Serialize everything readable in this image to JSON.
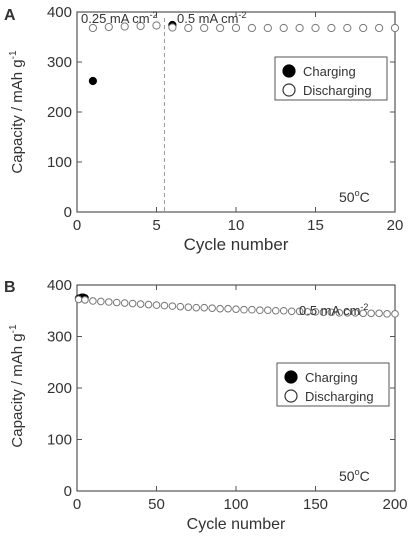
{
  "chart_data": [
    {
      "panel": "A",
      "type": "scatter",
      "xlabel": "Cycle number",
      "ylabel": "Capacity / mAh g",
      "ylabel_sup": "-1",
      "xlim": [
        0,
        20
      ],
      "ylim": [
        0,
        400
      ],
      "xticks": [
        0,
        5,
        10,
        15,
        20
      ],
      "yticks": [
        0,
        100,
        200,
        300,
        400
      ],
      "annotations": {
        "rate_left": "0.25 mA cm",
        "rate_left_sup": "-2",
        "rate_right": "0.5 mA cm",
        "rate_right_sup": "-2",
        "temp": "50",
        "temp_sup": "o",
        "temp_unit": "C"
      },
      "divider_x": 5.5,
      "legend": {
        "position": "top-right",
        "entries": [
          "Charging",
          "Discharging"
        ]
      },
      "series": [
        {
          "name": "Charging",
          "marker": "filled",
          "x": [
            1,
            6
          ],
          "y": [
            262,
            374
          ]
        },
        {
          "name": "Discharging",
          "marker": "open",
          "x": [
            1,
            2,
            3,
            4,
            5,
            6,
            7,
            8,
            9,
            10,
            11,
            12,
            13,
            14,
            15,
            16,
            17,
            18,
            19,
            20
          ],
          "y": [
            368,
            370,
            371,
            372,
            373,
            369,
            368,
            368,
            368,
            368,
            368,
            368,
            368,
            368,
            368,
            368,
            368,
            368,
            368,
            368
          ]
        }
      ]
    },
    {
      "panel": "B",
      "type": "scatter",
      "xlabel": "Cycle number",
      "ylabel": "Capacity / mAh g",
      "ylabel_sup": "-1",
      "xlim": [
        0,
        200
      ],
      "ylim": [
        0,
        400
      ],
      "xticks": [
        0,
        50,
        100,
        150,
        200
      ],
      "yticks": [
        0,
        100,
        200,
        300,
        400
      ],
      "annotations": {
        "rate": "0.5 mA cm",
        "rate_sup": "-2",
        "temp": "50",
        "temp_sup": "o",
        "temp_unit": "C"
      },
      "legend": {
        "position": "top-right",
        "entries": [
          "Charging",
          "Discharging"
        ]
      },
      "series": [
        {
          "name": "Charging",
          "marker": "filled",
          "x": [
            1,
            2,
            3,
            4,
            5
          ],
          "y": [
            374,
            375,
            376,
            376,
            375
          ]
        },
        {
          "name": "Discharging",
          "marker": "open",
          "x": [
            1,
            5,
            10,
            15,
            20,
            25,
            30,
            35,
            40,
            45,
            50,
            55,
            60,
            65,
            70,
            75,
            80,
            85,
            90,
            95,
            100,
            105,
            110,
            115,
            120,
            125,
            130,
            135,
            140,
            145,
            150,
            155,
            160,
            165,
            170,
            175,
            180,
            185,
            190,
            195,
            200
          ],
          "y": [
            372,
            371,
            369,
            368,
            367,
            366,
            365,
            364,
            363,
            362,
            361,
            360,
            359,
            358,
            357,
            356,
            356,
            355,
            354,
            354,
            353,
            352,
            352,
            351,
            351,
            350,
            350,
            349,
            349,
            348,
            348,
            347,
            347,
            346,
            346,
            346,
            345,
            345,
            345,
            344,
            344
          ]
        }
      ]
    }
  ]
}
